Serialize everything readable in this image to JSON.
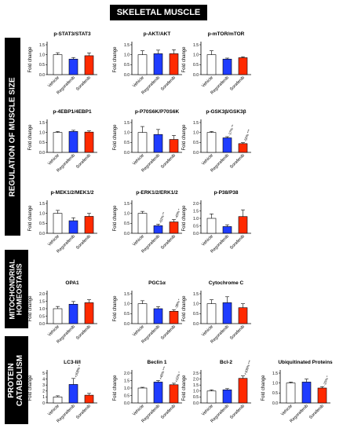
{
  "header": {
    "title": "SKELETAL MUSCLE"
  },
  "sections": [
    {
      "label": "REGULATION OF MUSCLE SIZE"
    },
    {
      "label": "MITOCHONDRIAL\nHOMEOSTASIS"
    },
    {
      "label": "PROTEIN\nCATABOLISM"
    }
  ],
  "colors": {
    "vehicle": "#ffffff",
    "regorafenib": "#1f3cff",
    "sorafenib": "#ff2a00"
  },
  "chart_data": [
    {
      "type": "bar",
      "title": "p-STAT3/STAT3",
      "ylabel": "Fold change",
      "categories": [
        "Vehicle",
        "Regorafenib",
        "Sorafenib"
      ],
      "values": [
        1.0,
        0.78,
        0.95
      ],
      "errors": [
        0.1,
        0.08,
        0.14
      ],
      "yticks": [
        "0.0",
        "0.5",
        "1.0",
        "1.5"
      ],
      "ylim": [
        0,
        1.5
      ],
      "annotations": [
        "",
        "",
        ""
      ]
    },
    {
      "type": "bar",
      "title": "p-AKT/AKT",
      "ylabel": "Fold change",
      "categories": [
        "Vehicle",
        "Regorafenib",
        "Sorafenib"
      ],
      "values": [
        1.0,
        1.05,
        1.05
      ],
      "errors": [
        0.2,
        0.18,
        0.2
      ],
      "yticks": [
        "0.0",
        "0.5",
        "1.0",
        "1.5"
      ],
      "ylim": [
        0,
        1.5
      ],
      "annotations": [
        "",
        "",
        ""
      ]
    },
    {
      "type": "bar",
      "title": "p-mTOR/mTOR",
      "ylabel": "Fold change",
      "categories": [
        "Vehicle",
        "Regorafenib",
        "Sorafenib"
      ],
      "values": [
        1.0,
        0.78,
        0.85
      ],
      "errors": [
        0.2,
        0.05,
        0.05
      ],
      "yticks": [
        "0.0",
        "0.5",
        "1.0",
        "1.5"
      ],
      "ylim": [
        0,
        1.5
      ],
      "annotations": [
        "",
        "",
        ""
      ]
    },
    {
      "type": "bar",
      "title": "p-4EBP1/4EBP1",
      "ylabel": "Fold change",
      "categories": [
        "Vehicle",
        "Regorafenib",
        "Sorafenib"
      ],
      "values": [
        1.0,
        1.05,
        1.02
      ],
      "errors": [
        0.05,
        0.06,
        0.06
      ],
      "yticks": [
        "0.0",
        "0.5",
        "1.0",
        "1.5"
      ],
      "ylim": [
        0,
        1.5
      ],
      "annotations": [
        "",
        "",
        ""
      ]
    },
    {
      "type": "bar",
      "title": "p-P70S6K/P70S6K",
      "ylabel": "Fold change",
      "categories": [
        "Vehicle",
        "Regorafenib",
        "Sorafenib"
      ],
      "values": [
        1.0,
        0.9,
        0.65
      ],
      "errors": [
        0.3,
        0.25,
        0.2
      ],
      "yticks": [
        "0.0",
        "0.5",
        "1.0",
        "1.5"
      ],
      "ylim": [
        0,
        1.5
      ],
      "annotations": [
        "",
        "",
        ""
      ]
    },
    {
      "type": "bar",
      "title": "p-GSK3β/GSK3β",
      "ylabel": "Fold change",
      "categories": [
        "Vehicle",
        "Regorafenib",
        "Sorafenib"
      ],
      "values": [
        1.0,
        0.73,
        0.44
      ],
      "errors": [
        0.05,
        0.06,
        0.05
      ],
      "yticks": [
        "0.0",
        "0.5",
        "1.0",
        "1.5"
      ],
      "ylim": [
        0,
        1.5
      ],
      "annotations": [
        "",
        "-27% **",
        "-56% ***"
      ]
    },
    {
      "type": "bar",
      "title": "p-MEK1/2/MEK1/2",
      "ylabel": "Fold change",
      "categories": [
        "Vehicle",
        "Regorafenib",
        "Sorafenib"
      ],
      "values": [
        1.0,
        0.63,
        0.85
      ],
      "errors": [
        0.15,
        0.15,
        0.15
      ],
      "yticks": [
        "0.0",
        "0.5",
        "1.0",
        "1.5"
      ],
      "ylim": [
        0,
        1.5
      ],
      "annotations": [
        "",
        "",
        ""
      ]
    },
    {
      "type": "bar",
      "title": "p-ERK1/2/ERK1/2",
      "ylabel": "Fold change",
      "categories": [
        "Vehicle",
        "Regorafenib",
        "Sorafenib"
      ],
      "values": [
        1.0,
        0.38,
        0.57
      ],
      "errors": [
        0.1,
        0.08,
        0.12
      ],
      "yticks": [
        "0.0",
        "0.5",
        "1.0",
        "1.5"
      ],
      "ylim": [
        0,
        1.5
      ],
      "annotations": [
        "",
        "-62% **",
        "-43% *"
      ]
    },
    {
      "type": "bar",
      "title": "p-P38/P38",
      "ylabel": "Fold change",
      "categories": [
        "Vehicle",
        "Regorafenib",
        "Sorafenib"
      ],
      "values": [
        1.0,
        0.45,
        1.12
      ],
      "errors": [
        0.3,
        0.12,
        0.45
      ],
      "yticks": [
        "0.0",
        "0.5",
        "1.0",
        "1.5",
        "2.0"
      ],
      "ylim": [
        0,
        2.0
      ],
      "annotations": [
        "",
        "",
        ""
      ]
    },
    {
      "type": "bar",
      "title": "OPA1",
      "ylabel": "Fold change",
      "categories": [
        "Vehicle",
        "Regorafenib",
        "Sorafenib"
      ],
      "values": [
        1.0,
        1.3,
        1.4
      ],
      "errors": [
        0.15,
        0.18,
        0.2
      ],
      "yticks": [
        "0.0",
        "0.5",
        "1.0",
        "1.5",
        "2.0"
      ],
      "ylim": [
        0,
        2.0
      ],
      "annotations": [
        "",
        "",
        ""
      ]
    },
    {
      "type": "bar",
      "title": "PGC1α",
      "ylabel": "Fold change",
      "categories": [
        "Vehicle",
        "Regorafenib",
        "Sorafenib"
      ],
      "values": [
        1.0,
        0.75,
        0.62
      ],
      "errors": [
        0.15,
        0.1,
        0.08
      ],
      "yticks": [
        "0.0",
        "0.5",
        "1.0",
        "1.5"
      ],
      "ylim": [
        0,
        1.5
      ],
      "annotations": [
        "",
        "",
        "-38% *"
      ]
    },
    {
      "type": "bar",
      "title": "Cytochrome C",
      "ylabel": "Fold change",
      "categories": [
        "Vehicle",
        "Regorafenib",
        "Sorafenib"
      ],
      "values": [
        1.0,
        1.05,
        0.8
      ],
      "errors": [
        0.2,
        0.3,
        0.2
      ],
      "yticks": [
        "0.0",
        "0.5",
        "1.0",
        "1.5"
      ],
      "ylim": [
        0,
        1.5
      ],
      "annotations": [
        "",
        "",
        ""
      ]
    },
    {
      "type": "bar",
      "title": "LC3-II/I",
      "ylabel": "Fold change",
      "categories": [
        "Vehicle",
        "Regorafenib",
        "Sorafenib"
      ],
      "values": [
        1.0,
        3.1,
        1.3
      ],
      "errors": [
        0.2,
        1.0,
        0.3
      ],
      "yticks": [
        "0",
        "1",
        "2",
        "3",
        "4",
        "5"
      ],
      "ylim": [
        0,
        5
      ],
      "annotations": [
        "",
        "+208% *",
        ""
      ]
    },
    {
      "type": "bar",
      "title": "Beclin 1",
      "ylabel": "Fold change",
      "categories": [
        "Vehicle",
        "Regorafenib",
        "Sorafenib"
      ],
      "values": [
        1.0,
        1.4,
        1.22
      ],
      "errors": [
        0.05,
        0.1,
        0.1
      ],
      "yticks": [
        "0.0",
        "0.5",
        "1.0",
        "1.5",
        "2.0"
      ],
      "ylim": [
        0,
        2.0
      ],
      "annotations": [
        "",
        "+40% ***",
        "+22% *"
      ]
    },
    {
      "type": "bar",
      "title": "Bcl-2",
      "ylabel": "Fold change",
      "categories": [
        "Vehicle",
        "Regorafenib",
        "Sorafenib"
      ],
      "values": [
        1.0,
        1.1,
        2.06
      ],
      "errors": [
        0.1,
        0.1,
        0.2
      ],
      "yticks": [
        "0.0",
        "0.5",
        "1.0",
        "1.5",
        "2.0",
        "2.5"
      ],
      "ylim": [
        0,
        2.5
      ],
      "annotations": [
        "",
        "",
        "+106% ***"
      ]
    },
    {
      "type": "bar",
      "title": "Ubiquitinated Proteins",
      "ylabel": "Fold change",
      "categories": [
        "Vehicle",
        "Regorafenib",
        "Sorafenib"
      ],
      "values": [
        1.0,
        1.05,
        0.75
      ],
      "errors": [
        0.05,
        0.15,
        0.07
      ],
      "yticks": [
        "0.0",
        "0.5",
        "1.0",
        "1.5"
      ],
      "ylim": [
        0,
        1.5
      ],
      "annotations": [
        "",
        "",
        "-25% *"
      ]
    }
  ]
}
